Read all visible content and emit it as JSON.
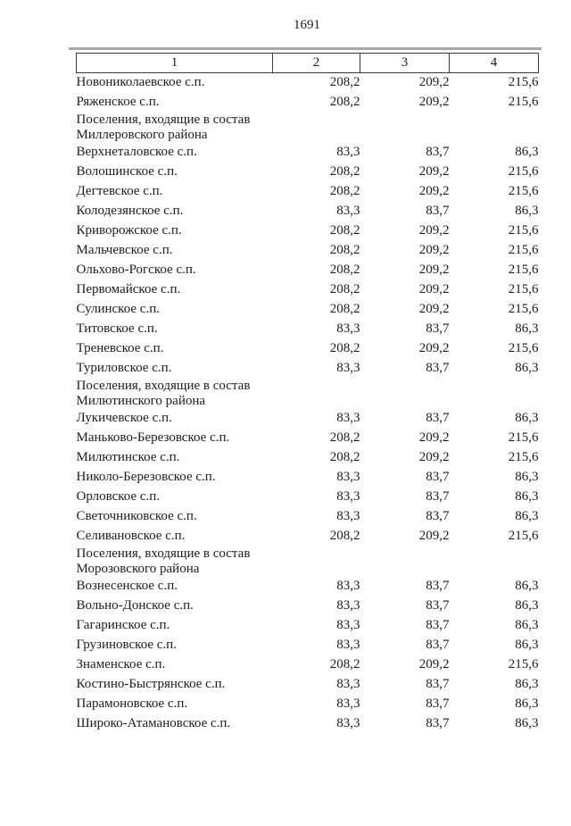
{
  "page": {
    "number": "1691"
  },
  "table": {
    "columns": [
      "1",
      "2",
      "3",
      "4"
    ],
    "rows": [
      {
        "type": "data",
        "name": "Новониколаевское с.п.",
        "values": [
          "208,2",
          "209,2",
          "215,6"
        ]
      },
      {
        "type": "data",
        "name": "Ряженское с.п.",
        "values": [
          "208,2",
          "209,2",
          "215,6"
        ]
      },
      {
        "type": "group",
        "lines": [
          "Поселения, входящие в состав",
          "Миллеровского района"
        ]
      },
      {
        "type": "data",
        "name": "Верхнеталовское с.п.",
        "values": [
          "83,3",
          "83,7",
          "86,3"
        ]
      },
      {
        "type": "data",
        "name": "Волошинское с.п.",
        "values": [
          "208,2",
          "209,2",
          "215,6"
        ]
      },
      {
        "type": "data",
        "name": "Дегтевское с.п.",
        "values": [
          "208,2",
          "209,2",
          "215,6"
        ]
      },
      {
        "type": "data",
        "name": "Колодезянское с.п.",
        "values": [
          "83,3",
          "83,7",
          "86,3"
        ]
      },
      {
        "type": "data",
        "name": "Криворожское с.п.",
        "values": [
          "208,2",
          "209,2",
          "215,6"
        ]
      },
      {
        "type": "data",
        "name": "Мальчевское с.п.",
        "values": [
          "208,2",
          "209,2",
          "215,6"
        ]
      },
      {
        "type": "data",
        "name": "Ольхово-Рогское с.п.",
        "values": [
          "208,2",
          "209,2",
          "215,6"
        ]
      },
      {
        "type": "data",
        "name": "Первомайское с.п.",
        "values": [
          "208,2",
          "209,2",
          "215,6"
        ]
      },
      {
        "type": "data",
        "name": "Сулинское с.п.",
        "values": [
          "208,2",
          "209,2",
          "215,6"
        ]
      },
      {
        "type": "data",
        "name": "Титовское с.п.",
        "values": [
          "83,3",
          "83,7",
          "86,3"
        ]
      },
      {
        "type": "data",
        "name": "Треневское с.п.",
        "values": [
          "208,2",
          "209,2",
          "215,6"
        ]
      },
      {
        "type": "data",
        "name": "Туриловское с.п.",
        "values": [
          "83,3",
          "83,7",
          "86,3"
        ]
      },
      {
        "type": "group",
        "lines": [
          "Поселения, входящие в состав",
          "Милютинского района"
        ]
      },
      {
        "type": "data",
        "name": "Лукичевское с.п.",
        "values": [
          "83,3",
          "83,7",
          "86,3"
        ]
      },
      {
        "type": "data",
        "name": "Маньково-Березовское с.п.",
        "values": [
          "208,2",
          "209,2",
          "215,6"
        ]
      },
      {
        "type": "data",
        "name": "Милютинское с.п.",
        "values": [
          "208,2",
          "209,2",
          "215,6"
        ]
      },
      {
        "type": "data",
        "name": "Николо-Березовское с.п.",
        "values": [
          "83,3",
          "83,7",
          "86,3"
        ]
      },
      {
        "type": "data",
        "name": "Орловское с.п.",
        "values": [
          "83,3",
          "83,7",
          "86,3"
        ]
      },
      {
        "type": "data",
        "name": "Светочниковское с.п.",
        "values": [
          "83,3",
          "83,7",
          "86,3"
        ]
      },
      {
        "type": "data",
        "name": "Селивановское с.п.",
        "values": [
          "208,2",
          "209,2",
          "215,6"
        ]
      },
      {
        "type": "group",
        "lines": [
          "Поселения, входящие в состав",
          "Морозовского района"
        ]
      },
      {
        "type": "data",
        "name": "Вознесенское с.п.",
        "values": [
          "83,3",
          "83,7",
          "86,3"
        ]
      },
      {
        "type": "data",
        "name": "Вольно-Донское с.п.",
        "values": [
          "83,3",
          "83,7",
          "86,3"
        ]
      },
      {
        "type": "data",
        "name": "Гагаринское с.п.",
        "values": [
          "83,3",
          "83,7",
          "86,3"
        ]
      },
      {
        "type": "data",
        "name": "Грузиновское с.п.",
        "values": [
          "83,3",
          "83,7",
          "86,3"
        ]
      },
      {
        "type": "data",
        "name": "Знаменское с.п.",
        "values": [
          "208,2",
          "209,2",
          "215,6"
        ]
      },
      {
        "type": "data",
        "name": "Костино-Быстрянское с.п.",
        "values": [
          "83,3",
          "83,7",
          "86,3"
        ]
      },
      {
        "type": "data",
        "name": "Парамоновское с.п.",
        "values": [
          "83,3",
          "83,7",
          "86,3"
        ]
      },
      {
        "type": "data",
        "name": "Широко-Атамановское с.п.",
        "values": [
          "83,3",
          "83,7",
          "86,3"
        ]
      }
    ]
  }
}
